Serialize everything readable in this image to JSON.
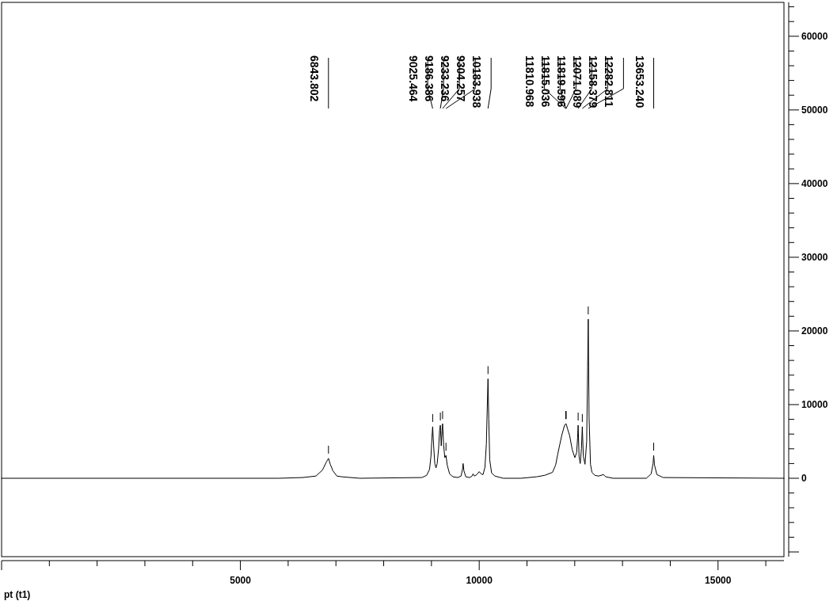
{
  "chart_data": {
    "type": "line",
    "xlabel": "pt (t1)",
    "series": [
      {
        "color": "#000000",
        "x": [
          0,
          5800,
          6300,
          6580,
          6717,
          6800,
          6843.802,
          6882,
          6938,
          7021,
          7125,
          7500,
          8800,
          8900,
          8960,
          8990,
          9010,
          9025.464,
          9045,
          9070,
          9095,
          9120,
          9150,
          9170,
          9186.386,
          9205,
          9222,
          9233.236,
          9255,
          9280,
          9304.257,
          9330,
          9380,
          9450,
          9550,
          9620,
          9650,
          9663,
          9680,
          9720,
          9800,
          9850,
          9871,
          9900,
          9950,
          10000,
          10040,
          10080,
          10120,
          10150,
          10170,
          10183.938,
          10200,
          10220,
          10260,
          10330,
          10500,
          10874,
          11200,
          11370,
          11534,
          11600,
          11645,
          11727,
          11782,
          11810.968,
          11815.036,
          11819.596,
          11850,
          11893,
          11947,
          12002,
          12040,
          12060,
          12071.089,
          12090,
          12115,
          12140,
          12158.379,
          12180,
          12215,
          12250,
          12270,
          12282.811,
          12300,
          12330,
          12360,
          12420,
          12500,
          12600,
          12650,
          12800,
          13500,
          13600,
          13640,
          13653.24,
          13670,
          13720,
          13850,
          16380
        ],
        "values": [
          0,
          0,
          100,
          300,
          1100,
          2200,
          2700,
          1900,
          1000,
          300,
          200,
          0,
          100,
          400,
          1200,
          3000,
          5500,
          7000,
          4500,
          2000,
          1400,
          2000,
          4000,
          6500,
          7200,
          4400,
          6500,
          7400,
          4500,
          2800,
          3100,
          1800,
          600,
          200,
          100,
          300,
          1200,
          2000,
          1000,
          200,
          100,
          300,
          600,
          300,
          500,
          900,
          600,
          500,
          1500,
          4700,
          10000,
          13500,
          8000,
          2500,
          700,
          300,
          0,
          0,
          200,
          400,
          800,
          1800,
          3300,
          5800,
          7100,
          7400,
          7400,
          7400,
          6700,
          5800,
          3900,
          2800,
          3500,
          5500,
          7200,
          3000,
          2000,
          4000,
          7000,
          3000,
          1900,
          5000,
          15000,
          21600,
          8300,
          1900,
          800,
          400,
          300,
          500,
          200,
          0,
          0,
          600,
          2000,
          3100,
          1800,
          500,
          100,
          0
        ]
      }
    ],
    "xlim": [
      0,
      16380
    ],
    "ylim": [
      -10640,
      64600
    ],
    "xticks": [
      {
        "value": 0,
        "label": null
      },
      {
        "value": 1000,
        "label": null
      },
      {
        "value": 2000,
        "label": null
      },
      {
        "value": 3000,
        "label": null
      },
      {
        "value": 4000,
        "label": null
      },
      5000,
      {
        "value": 6000,
        "label": null
      },
      {
        "value": 7000,
        "label": null
      },
      {
        "value": 8000,
        "label": null
      },
      {
        "value": 9000,
        "label": null
      },
      10000,
      {
        "value": 11000,
        "label": null
      },
      {
        "value": 12000,
        "label": null
      },
      {
        "value": 13000,
        "label": null
      },
      {
        "value": 14000,
        "label": null
      },
      15000,
      {
        "value": 16000,
        "label": null
      }
    ],
    "yticks": [
      {
        "value": -10000,
        "label": null
      },
      {
        "value": -8000,
        "label": null
      },
      {
        "value": -6000,
        "label": null
      },
      {
        "value": -4000,
        "label": null
      },
      {
        "value": -2000,
        "label": null
      },
      0,
      {
        "value": 2000,
        "label": null
      },
      {
        "value": 4000,
        "label": null
      },
      {
        "value": 6000,
        "label": null
      },
      {
        "value": 8000,
        "label": null
      },
      10000,
      {
        "value": 12000,
        "label": null
      },
      {
        "value": 14000,
        "label": null
      },
      {
        "value": 16000,
        "label": null
      },
      {
        "value": 18000,
        "label": null
      },
      20000,
      {
        "value": 22000,
        "label": null
      },
      {
        "value": 24000,
        "label": null
      },
      {
        "value": 26000,
        "label": null
      },
      {
        "value": 28000,
        "label": null
      },
      30000,
      {
        "value": 32000,
        "label": null
      },
      {
        "value": 34000,
        "label": null
      },
      {
        "value": 36000,
        "label": null
      },
      {
        "value": 38000,
        "label": null
      },
      40000,
      {
        "value": 42000,
        "label": null
      },
      {
        "value": 44000,
        "label": null
      },
      {
        "value": 46000,
        "label": null
      },
      {
        "value": 48000,
        "label": null
      },
      50000,
      {
        "value": 52000,
        "label": null
      },
      {
        "value": 54000,
        "label": null
      },
      {
        "value": 56000,
        "label": null
      },
      {
        "value": 58000,
        "label": null
      },
      60000,
      {
        "value": 62000,
        "label": null
      },
      {
        "value": 64000,
        "label": null
      }
    ],
    "annotations": [
      "6843.802",
      "9025.464",
      "9186.386",
      "9233.236",
      "9304.257",
      "10183.938",
      "11810.968",
      "11815.036",
      "11819.596",
      "12071.089",
      "12158.379",
      "12282.811",
      "13653.240"
    ]
  }
}
